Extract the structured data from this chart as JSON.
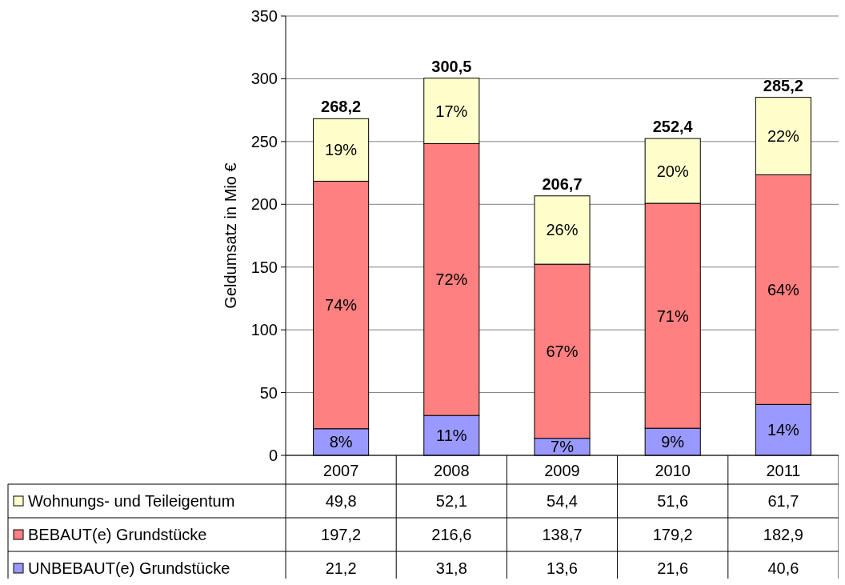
{
  "chart_data": {
    "type": "bar",
    "stacked": true,
    "ylabel": "Geldumsatz in Mio €",
    "categories": [
      "2007",
      "2008",
      "2009",
      "2010",
      "2011"
    ],
    "ylim": [
      0,
      350
    ],
    "yticks": [
      0,
      50,
      100,
      150,
      200,
      250,
      300,
      350
    ],
    "grid": "y",
    "legend": "left",
    "data_labels": true,
    "totals": [
      "268,2",
      "300,5",
      "206,7",
      "252,4",
      "285,2"
    ],
    "series": [
      {
        "name": "UNBEBAUT(e) Grundstücke",
        "color": "#9999ff",
        "values": [
          21.2,
          31.8,
          13.6,
          21.6,
          40.6
        ],
        "value_labels": [
          "21,2",
          "31,8",
          "13,6",
          "21,6",
          "40,6"
        ]
      },
      {
        "name": "BEBAUT(e) Grundstücke",
        "color": "#ff8080",
        "values": [
          197.2,
          216.6,
          138.7,
          179.2,
          182.9
        ],
        "value_labels": [
          "197,2",
          "216,6",
          "138,7",
          "179,2",
          "182,9"
        ]
      },
      {
        "name": "Wohnungs- und Teileigentum",
        "color": "#ffffcc",
        "values": [
          49.8,
          52.1,
          54.4,
          51.6,
          61.7
        ],
        "value_labels": [
          "49,8",
          "52,1",
          "54,4",
          "51,6",
          "61,7"
        ]
      }
    ],
    "annotations": [
      "8%",
      "11%",
      "7%",
      "9%",
      "14%",
      "74%",
      "72%",
      "67%",
      "71%",
      "64%",
      "19%",
      "17%",
      "26%",
      "20%",
      "22%"
    ]
  }
}
